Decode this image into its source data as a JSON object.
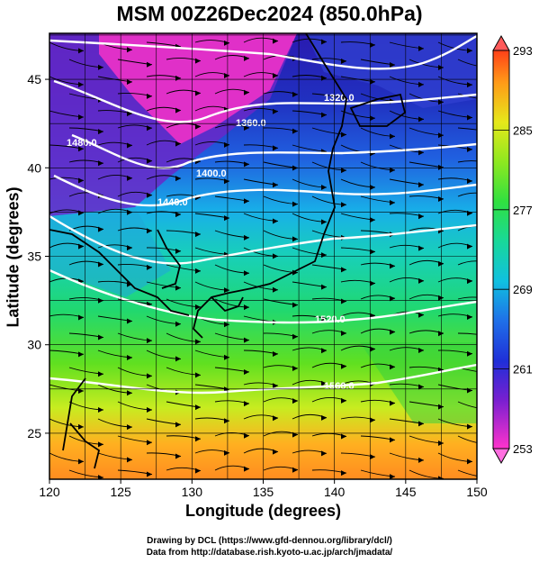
{
  "title": "MSM 00Z26Dec2024 (850.0hPa)",
  "x_axis": {
    "label": "Longitude (degrees)",
    "ticks": [
      "120",
      "125",
      "130",
      "135",
      "140",
      "145",
      "150"
    ],
    "range": [
      120,
      150
    ]
  },
  "y_axis": {
    "label": "Latitude  (degrees)",
    "ticks": [
      "25",
      "30",
      "35",
      "40",
      "45"
    ],
    "range": [
      22.4,
      47.6
    ]
  },
  "colorbar": {
    "ticks": [
      "293",
      "285",
      "277",
      "269",
      "261",
      "253"
    ],
    "range": [
      253,
      293
    ]
  },
  "contour_labels": [
    "1320.0",
    "1360.0",
    "1400.0",
    "1440.0",
    "1480.0",
    "1520.0",
    "1560.0"
  ],
  "credits": {
    "line1": "Drawing by DCL (https://www.gfd-dennou.org/library/dcl/)",
    "line2": "Data from http://database.rish.kyoto-u.ac.jp/arch/jmadata/"
  },
  "colors": {
    "frame": "#000000",
    "contour": "#ffffff",
    "streamline": "#000000"
  }
}
